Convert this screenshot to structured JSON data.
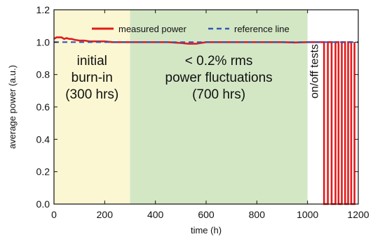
{
  "chart_data": {
    "type": "line",
    "xlabel": "time (h)",
    "ylabel": "average power (a.u.)",
    "xlim": [
      0,
      1200
    ],
    "ylim": [
      0,
      1.2
    ],
    "xticks": [
      "0",
      "200",
      "400",
      "600",
      "800",
      "1000",
      "1200"
    ],
    "yticks": [
      "0.0",
      "0.2",
      "0.4",
      "0.6",
      "0.8",
      "1.0",
      "1.2"
    ],
    "legend": {
      "position": "top-center",
      "entries": [
        "measured power",
        "reference line"
      ]
    },
    "regions": [
      {
        "x_start": 0,
        "x_end": 300,
        "color": "#fbf7d2",
        "label_lines": [
          "initial",
          "burn-in",
          "(300 hrs)"
        ]
      },
      {
        "x_start": 300,
        "x_end": 1000,
        "color": "#d3e7c5",
        "label_lines": [
          "< 0.2% rms",
          "power fluctuations",
          "(700 hrs)"
        ]
      }
    ],
    "annotation": {
      "text": "on/off tests",
      "x": 1025,
      "y": 0.82,
      "rotation": -90
    },
    "series": [
      {
        "name": "measured power",
        "color": "#e31b1b",
        "style": "solid",
        "x": [
          0,
          10,
          20,
          30,
          40,
          50,
          60,
          70,
          80,
          100,
          120,
          140,
          160,
          180,
          200,
          230,
          260,
          300,
          350,
          400,
          450,
          500,
          530,
          560,
          580,
          600,
          650,
          700,
          750,
          800,
          850,
          900,
          950,
          1000,
          1020,
          1050
        ],
        "y": [
          1.02,
          1.03,
          1.03,
          1.03,
          1.02,
          1.025,
          1.02,
          1.02,
          1.015,
          1.01,
          1.01,
          1.005,
          1.005,
          1.005,
          1.005,
          1.0,
          1.0,
          1.0,
          1.0,
          1.0,
          1.0,
          0.995,
          0.99,
          0.99,
          0.995,
          1.0,
          1.0,
          1.0,
          1.0,
          1.0,
          1.0,
          1.0,
          0.998,
          1.0,
          1.0,
          1.0
        ]
      },
      {
        "name": "on/off tests",
        "color": "#e31b1b",
        "style": "solid",
        "x": [
          1050,
          1065,
          1065,
          1080,
          1080,
          1095,
          1095,
          1110,
          1110,
          1122,
          1122,
          1135,
          1135,
          1148,
          1148,
          1160,
          1160,
          1172,
          1172,
          1185,
          1185
        ],
        "y": [
          1.0,
          1.0,
          0.0,
          0.0,
          1.0,
          1.0,
          0.0,
          0.0,
          1.0,
          1.0,
          0.0,
          0.0,
          1.0,
          1.0,
          0.0,
          0.0,
          1.0,
          1.0,
          0.0,
          0.0,
          1.0
        ]
      },
      {
        "name": "reference line",
        "color": "#3557b7",
        "style": "dashed",
        "x": [
          0,
          1200
        ],
        "y": [
          1.0,
          1.0
        ]
      }
    ]
  }
}
